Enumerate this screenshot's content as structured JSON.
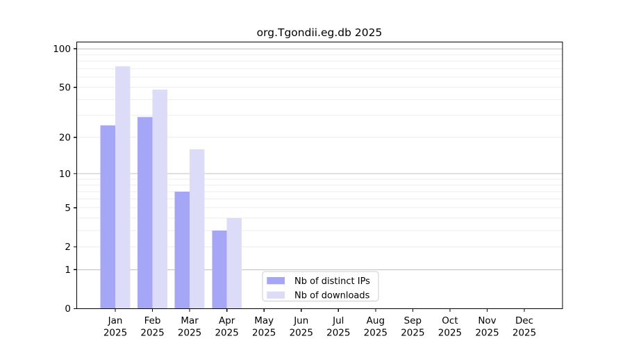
{
  "figure": {
    "title": "org.Tgondii.eg.db 2025"
  },
  "chart_data": {
    "type": "bar",
    "title": "org.Tgondii.eg.db 2025",
    "months": [
      "Jan",
      "Feb",
      "Mar",
      "Apr",
      "May",
      "Jun",
      "Jul",
      "Aug",
      "Sep",
      "Oct",
      "Nov",
      "Dec"
    ],
    "year_label": "2025",
    "categories": [
      "Jan 2025",
      "Feb 2025",
      "Mar 2025",
      "Apr 2025",
      "May 2025",
      "Jun 2025",
      "Jul 2025",
      "Aug 2025",
      "Sep 2025",
      "Oct 2025",
      "Nov 2025",
      "Dec 2025"
    ],
    "series": [
      {
        "name": "Nb of distinct IPs",
        "color": "#a6a6f6",
        "values": [
          25,
          29,
          7,
          3,
          0,
          0,
          0,
          0,
          0,
          0,
          0,
          0
        ]
      },
      {
        "name": "Nb of downloads",
        "color": "#dcdcf8",
        "values": [
          73,
          48,
          16,
          4,
          0,
          0,
          0,
          0,
          0,
          0,
          0,
          0
        ]
      }
    ],
    "xlabel": "",
    "ylabel": "",
    "y_axis": {
      "scale": "log10(1+x)",
      "range": [
        0,
        113
      ],
      "tick_values": [
        0,
        1,
        2,
        5,
        10,
        20,
        50,
        100
      ],
      "major_gridlines": [
        1,
        10,
        100
      ],
      "minor_gridlines": [
        2,
        3,
        4,
        5,
        6,
        7,
        8,
        9,
        20,
        30,
        40,
        50,
        60,
        70,
        80,
        90
      ]
    },
    "legend": {
      "entries": [
        "Nb of distinct IPs",
        "Nb of downloads"
      ],
      "position": "bottom-center-left"
    },
    "grid": true,
    "colors": {
      "bar_distinct_ips": "#a6a6f6",
      "bar_downloads": "#dcdcf8",
      "grid_major": "#c0c0c0",
      "grid_minor": "#ededed",
      "axis": "#000000",
      "text": "#000000",
      "legend_border": "#cccccc",
      "background": "#ffffff"
    }
  }
}
